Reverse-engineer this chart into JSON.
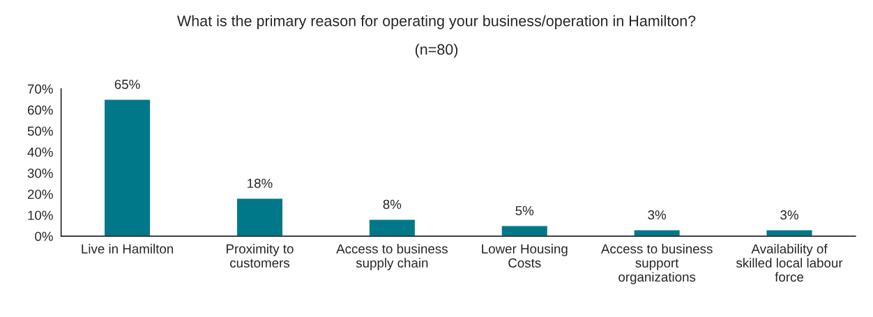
{
  "chart_data": {
    "type": "bar",
    "title": "What is the primary reason for operating your business/operation in Hamilton?",
    "subtitle": "(n=80)",
    "categories": [
      "Live in Hamilton",
      "Proximity to\ncustomers",
      "Access to business\nsupply chain",
      "Lower Housing\nCosts",
      "Access to business\nsupport\norganizations",
      "Availability of\nskilled local labour\nforce"
    ],
    "values": [
      65,
      18,
      8,
      5,
      3,
      3
    ],
    "value_labels": [
      "65%",
      "18%",
      "8%",
      "5%",
      "3%",
      "3%"
    ],
    "color": "#00788a",
    "ylim": [
      0,
      70
    ],
    "yticks": [
      {
        "value": 0,
        "label": "0%"
      },
      {
        "value": 10,
        "label": "10%"
      },
      {
        "value": 20,
        "label": "20%"
      },
      {
        "value": 30,
        "label": "30%"
      },
      {
        "value": 40,
        "label": "40%"
      },
      {
        "value": 50,
        "label": "50%"
      },
      {
        "value": 60,
        "label": "60%"
      },
      {
        "value": 70,
        "label": "70%"
      }
    ],
    "grid": false,
    "legend": false
  }
}
